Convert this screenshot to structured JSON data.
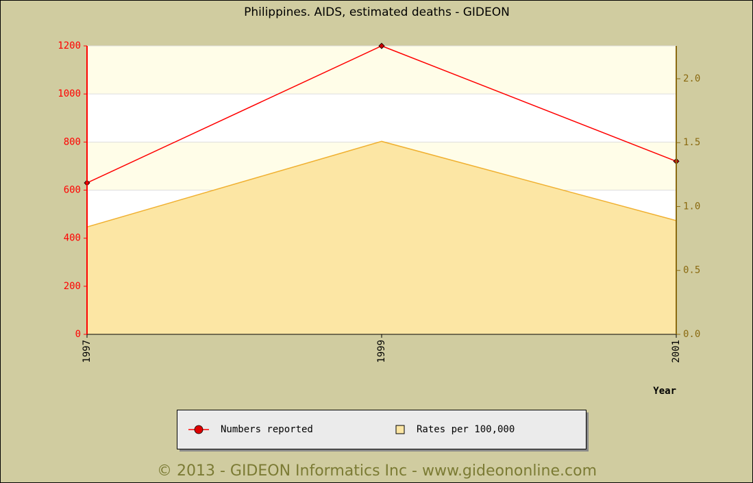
{
  "chart_data": {
    "type": "line",
    "title": "Philippines. AIDS, estimated deaths - GIDEON",
    "x": [
      1997,
      1999,
      2001
    ],
    "xlim": [
      1997,
      2001
    ],
    "xticks": [
      1997,
      1999,
      2001
    ],
    "xlabel": "Year",
    "ylim": [
      0,
      1200
    ],
    "yticks": [
      0,
      200,
      400,
      600,
      800,
      1000,
      1200
    ],
    "y2lim": [
      0,
      2.257
    ],
    "y2ticks": [
      {
        "value": 0,
        "label": "0.0"
      },
      0.5,
      {
        "value": 1,
        "label": "1.0"
      },
      1.5,
      {
        "value": 2,
        "label": "2.0"
      }
    ],
    "grid": true,
    "legend": "bottom",
    "series": [
      {
        "name": "Numbers reported",
        "type": "line",
        "color": "#ff0000",
        "values": [
          630,
          1200,
          720
        ]
      },
      {
        "name": "Rates per 100,000",
        "type": "area",
        "axis": "y2",
        "color": "#fce6a4",
        "values": [
          0.84,
          1.51,
          0.89
        ]
      }
    ],
    "credit": "© 2013 - GIDEON Informatics Inc - www.gideononline.com"
  }
}
